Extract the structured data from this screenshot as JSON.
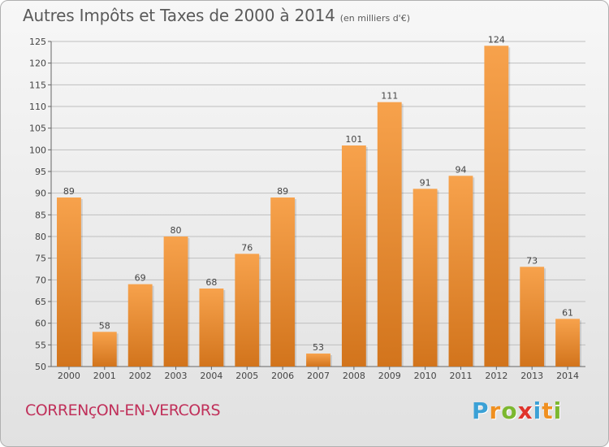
{
  "title": "Autres Impôts et Taxes de 2000 à 2014",
  "unit": "(en milliers d'€)",
  "commune": "CORRENçON-EN-VERCORS",
  "brand": {
    "letters": [
      "P",
      "r",
      "o",
      "x",
      "i",
      "t",
      "i"
    ],
    "colors": [
      "#3ba1d6",
      "#f09020",
      "#7cb82f",
      "#e0342c",
      "#3ba1d6",
      "#f09020",
      "#7cb82f"
    ]
  },
  "colors": {
    "bar_top": "#f7a24c",
    "bar_bottom": "#d2741c",
    "grid": "#bfbfbf",
    "text": "#444444"
  },
  "chart_data": {
    "type": "bar",
    "categories": [
      "2000",
      "2001",
      "2002",
      "2003",
      "2004",
      "2005",
      "2006",
      "2007",
      "2008",
      "2009",
      "2010",
      "2011",
      "2012",
      "2013",
      "2014"
    ],
    "values": [
      89,
      58,
      69,
      80,
      68,
      76,
      89,
      53,
      101,
      111,
      91,
      94,
      124,
      73,
      61
    ],
    "ylim": [
      50,
      125
    ],
    "yticks": [
      50,
      55,
      60,
      65,
      70,
      75,
      80,
      85,
      90,
      95,
      100,
      105,
      110,
      115,
      120,
      125
    ],
    "grid": true,
    "data_labels": true
  }
}
